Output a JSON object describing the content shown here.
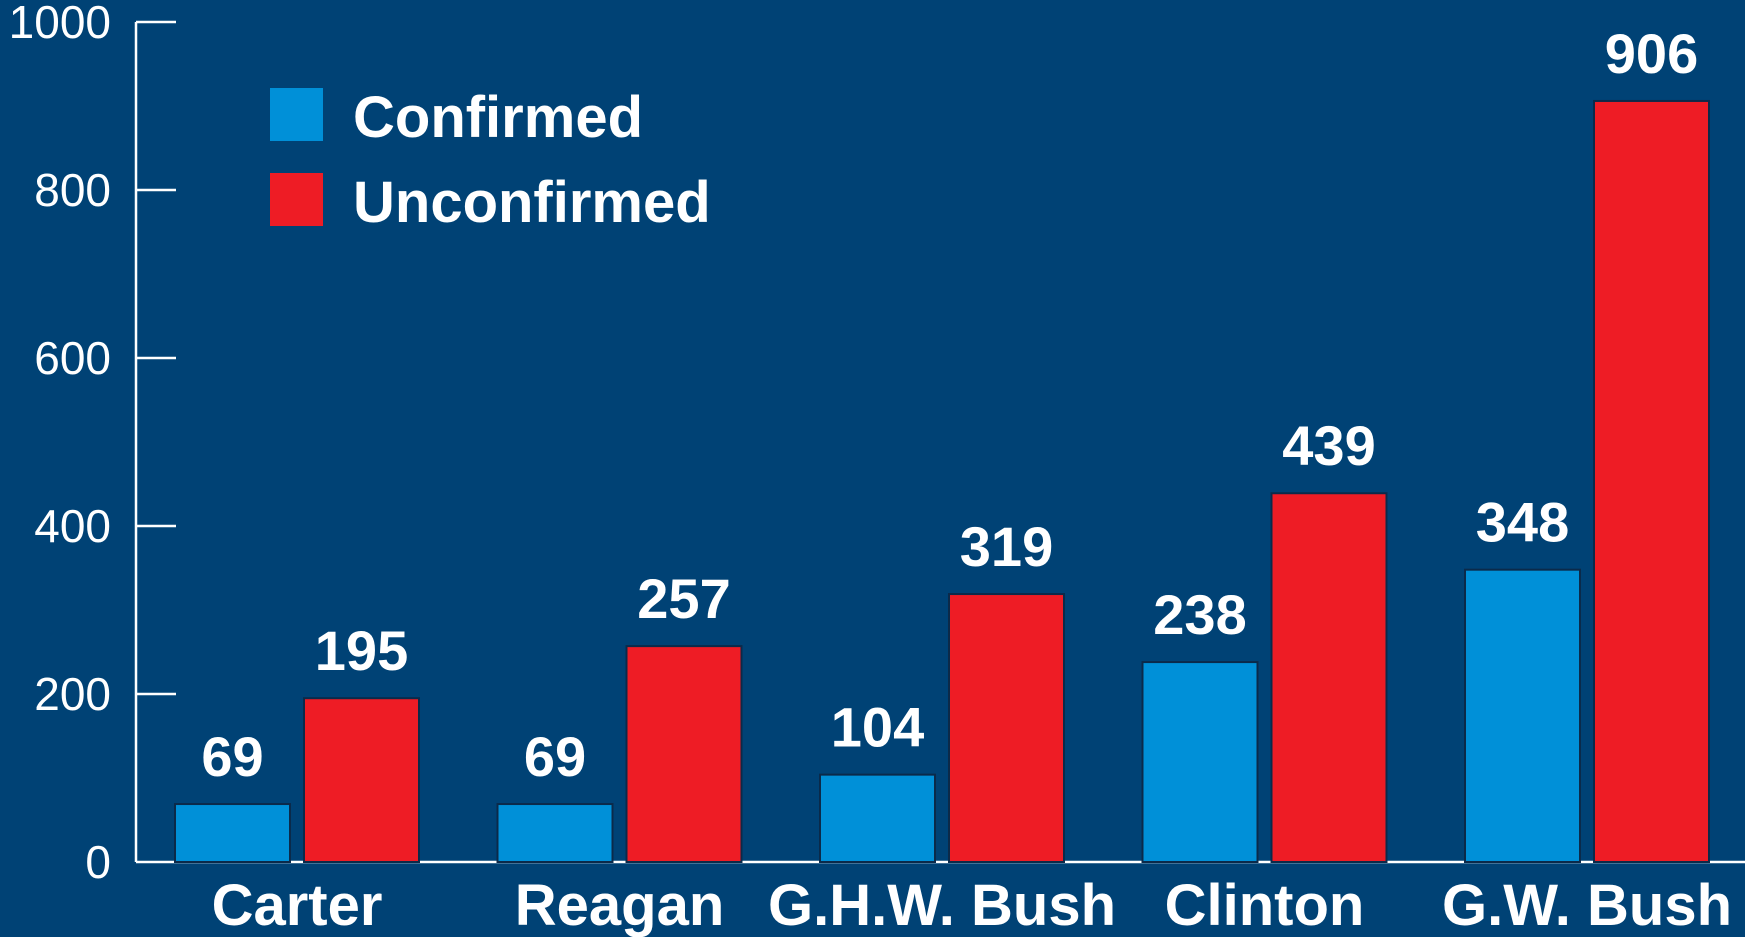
{
  "colors": {
    "background": "#004275",
    "confirmed": "#0090d8",
    "unconfirmed": "#ee1c25",
    "axis": "#ffffff"
  },
  "chart_data": {
    "type": "bar",
    "title": "",
    "xlabel": "",
    "ylabel": "",
    "categories": [
      "Carter",
      "Reagan",
      "G.H.W. Bush",
      "Clinton",
      "G.W. Bush"
    ],
    "series": [
      {
        "name": "Confirmed",
        "values": [
          69,
          69,
          104,
          238,
          348
        ]
      },
      {
        "name": "Unconfirmed",
        "values": [
          195,
          257,
          319,
          439,
          906
        ]
      }
    ],
    "ylim": [
      0,
      1000
    ],
    "yticks": [
      "0",
      "200",
      "400",
      "600",
      "800",
      "1000"
    ],
    "grid": false,
    "legend_position": "top-left",
    "data_labels": true
  }
}
